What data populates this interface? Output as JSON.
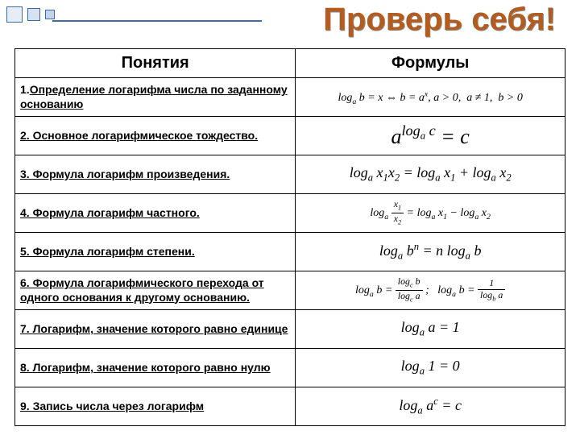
{
  "title": "Проверь себя!",
  "headers": {
    "left": "Понятия",
    "right": "Формулы"
  },
  "rows": [
    {
      "label_html": "1.<span class='underline'>Определение  логарифма числа по заданному основанию</span>",
      "formula_html": "<span class='formula small-text'>log<span class='sub'>a</span> b = x ⇔ b = a<span class='sup'>x</span>, a &gt; 0,&nbsp;&nbsp;a ≠ 1,&nbsp;&nbsp;b &gt; 0</span>"
    },
    {
      "label_html": "<span class='underline'>2. Основное  логарифмическое тождество.</span>",
      "formula_html": "<span class='formula big-f'>a<span class='sup'>log<span class='sub'>a</span> c</span> = c</span>"
    },
    {
      "label_html": "<span class='underline'>3. Формула  логарифм произведения.</span>",
      "formula_html": "<span class='formula'>log<span class='sub'>a</span> x<span class='sub'>1</span>x<span class='sub'>2</span> = log<span class='sub'>a</span> x<span class='sub'>1</span> + log<span class='sub'>a</span> x<span class='sub'>2</span></span>"
    },
    {
      "label_html": "<span class='underline'>4. Формула  логарифм частного.</span>",
      "formula_html": "<span class='formula small-text'>log<span class='sub'>a</span> <span class='frac'><span class='num'>x<span class='sub'>1</span></span><span class='den'>x<span class='sub'>2</span></span></span> = log<span class='sub'>a</span> x<span class='sub'>1</span> − log<span class='sub'>a</span> x<span class='sub'>2</span></span>"
    },
    {
      "label_html": "<span class='underline'>5. Формула  логарифм степени.</span>",
      "formula_html": "<span class='formula'>log<span class='sub'>a</span> b<span class='sup'>n</span> = n log<span class='sub'>a</span> b</span>"
    },
    {
      "label_html": "<span class='underline'>6. Формула  логарифмического перехода от одного основания к другому основанию.</span>",
      "formula_html": "<span class='formula small-text'>log<span class='sub'>a</span> b = <span class='frac'><span class='num'>log<span class='sub'>c</span> b</span><span class='den'>log<span class='sub'>c</span> a</span></span> ;&nbsp;&nbsp; log<span class='sub'>a</span> b = <span class='frac'><span class='num'>1</span><span class='den'>log<span class='sub'>b</span> a</span></span></span>"
    },
    {
      "label_html": "<span class='underline'>7. Логарифм, значение которого равно единице</span>",
      "formula_html": "<span class='formula'>log<span class='sub'>a</span> a = 1</span>"
    },
    {
      "label_html": "<span class='underline'>8. Логарифм, значение которого равно нулю</span>",
      "formula_html": "<span class='formula'>log<span class='sub'>a</span> 1 = 0</span>"
    },
    {
      "label_html": "<span class='underline'>9. Запись числа через логарифм</span>",
      "formula_html": "<span class='formula'>log<span class='sub'>a</span> a<span class='sup'>c</span> = c</span>"
    }
  ],
  "colors": {
    "title_color": "#b35c1f",
    "border_color": "#000000",
    "accent": "#3d6ba8"
  }
}
